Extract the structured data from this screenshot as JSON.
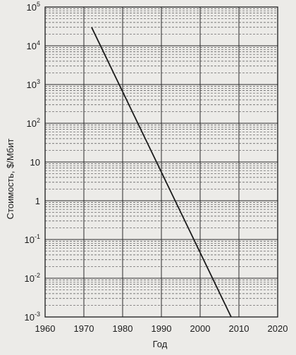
{
  "chart_data": {
    "type": "line",
    "xlabel": "Год",
    "ylabel": "Стоимость, $/Мбит",
    "x_scale": "linear",
    "y_scale": "log",
    "xlim": [
      1960,
      2020
    ],
    "ylim": [
      0.001,
      100000
    ],
    "x_ticks": [
      {
        "value": 1960,
        "label": "1960"
      },
      {
        "value": 1970,
        "label": "1970"
      },
      {
        "value": 1980,
        "label": "1980"
      },
      {
        "value": 1990,
        "label": "1990"
      },
      {
        "value": 2000,
        "label": "2000"
      },
      {
        "value": 2010,
        "label": "2010"
      },
      {
        "value": 2020,
        "label": "2020"
      }
    ],
    "y_ticks": [
      {
        "value": 100000,
        "base": "10",
        "exp": "5"
      },
      {
        "value": 10000,
        "base": "10",
        "exp": "4"
      },
      {
        "value": 1000,
        "base": "10",
        "exp": "3"
      },
      {
        "value": 100,
        "base": "10",
        "exp": "2"
      },
      {
        "value": 10,
        "base": "10",
        "exp": ""
      },
      {
        "value": 1,
        "base": "1",
        "exp": ""
      },
      {
        "value": 0.1,
        "base": "10",
        "exp": "-1"
      },
      {
        "value": 0.01,
        "base": "10",
        "exp": "-2"
      },
      {
        "value": 0.001,
        "base": "10",
        "exp": "-3"
      }
    ],
    "grid": true,
    "minor_grid": "dashed",
    "series": [
      {
        "points": [
          {
            "x": 1972,
            "y": 30000
          },
          {
            "x": 2008,
            "y": 0.001
          }
        ]
      }
    ],
    "colors": {
      "line": "#1c1c1c",
      "grid": "#555555",
      "background": "#ecebe8"
    }
  }
}
